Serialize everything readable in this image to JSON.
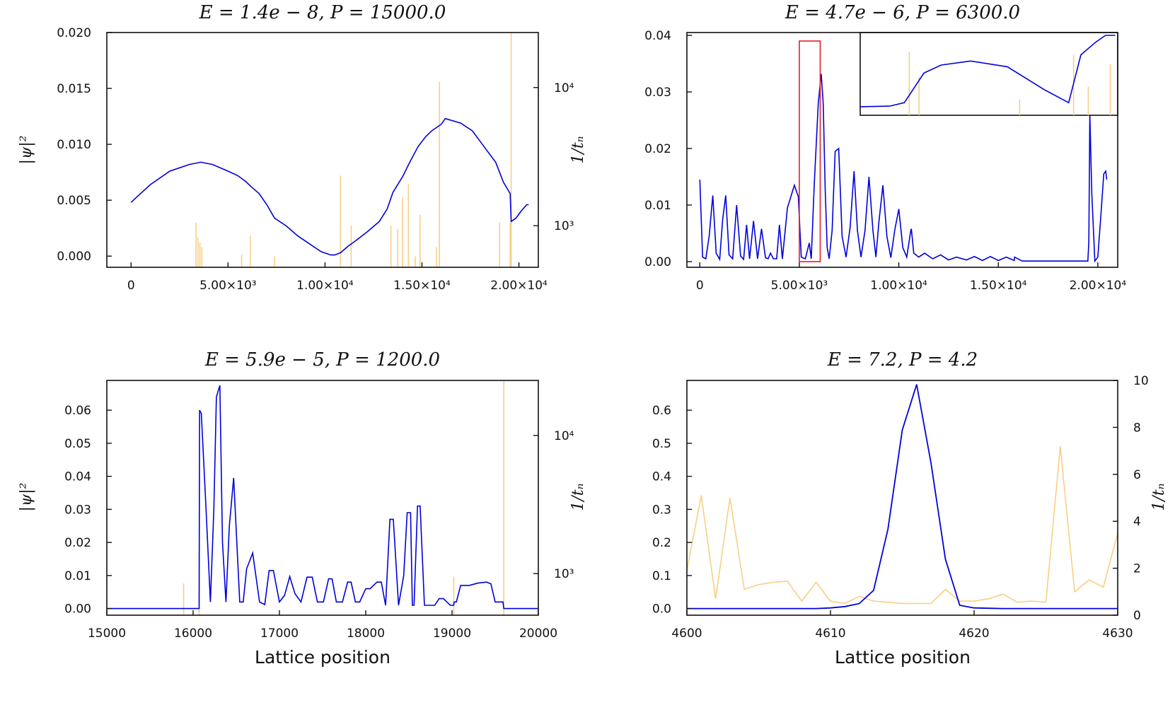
{
  "figure": {
    "colors": {
      "wave": "#0000dd",
      "bars": "#f7cf85",
      "frame": "#111111",
      "highlight": "#e0202a"
    },
    "left_ylabel": "|ψ|²",
    "right_ylabel": "1/tₙ"
  },
  "chart_data": [
    {
      "id": "p1",
      "type": "line",
      "title": "E = 1.4e − 8, P = 15000.0",
      "xlabel": "",
      "ylabel": "|ψ|²",
      "y2label": "1/tₙ",
      "xlim": [
        -1250,
        21000
      ],
      "ylim": [
        -0.001,
        0.02
      ],
      "y2_log": true,
      "y2lim": [
        500,
        25000
      ],
      "xticks": [
        0,
        5000,
        10000,
        15000,
        20000
      ],
      "xtick_labels": [
        "0",
        "5.00×10³",
        "1.00×10⁴",
        "1.50×10⁴",
        "2.00×10⁴"
      ],
      "yticks": [
        0,
        0.005,
        0.01,
        0.015,
        0.02
      ],
      "ytick_labels": [
        "0.000",
        "0.005",
        "0.010",
        "0.015",
        "0.020"
      ],
      "y2ticks": [
        1000,
        10000
      ],
      "y2tick_labels": [
        "10³",
        "10⁴"
      ],
      "series": [
        {
          "name": "|ψ|²",
          "x": [
            0,
            300,
            1000,
            2000,
            3000,
            3600,
            4200,
            5000,
            5500,
            5900,
            6200,
            6600,
            7000,
            7400,
            8000,
            8600,
            9200,
            9800,
            10300,
            10500,
            10800,
            11200,
            11600,
            12200,
            12800,
            13200,
            13500,
            14000,
            14400,
            14800,
            15200,
            15500,
            16000,
            16200,
            16400,
            17000,
            17600,
            18200,
            18800,
            19200,
            19550,
            19600,
            19850,
            20100,
            20400,
            20500
          ],
          "values": [
            0.0048,
            0.0053,
            0.0064,
            0.0076,
            0.0082,
            0.0084,
            0.0082,
            0.0076,
            0.0072,
            0.0067,
            0.0062,
            0.0056,
            0.0046,
            0.0034,
            0.0027,
            0.0018,
            0.0011,
            0.0004,
            0.0001,
            0.0001,
            0.0003,
            0.0009,
            0.0014,
            0.0022,
            0.0031,
            0.0042,
            0.0057,
            0.0071,
            0.0085,
            0.0098,
            0.0107,
            0.0112,
            0.0118,
            0.0123,
            0.0122,
            0.0119,
            0.0112,
            0.0098,
            0.0084,
            0.0066,
            0.0056,
            0.0031,
            0.0034,
            0.004,
            0.0046,
            0.0046
          ]
        }
      ],
      "bars": {
        "name": "1/tₙ",
        "x": [
          3350,
          3450,
          3550,
          3650,
          5700,
          6150,
          7400,
          10800,
          11350,
          13400,
          13750,
          14000,
          14300,
          14650,
          14900,
          15750,
          15900,
          19000,
          19550,
          19600
        ],
        "values": [
          1050,
          820,
          750,
          700,
          620,
          850,
          600,
          2300,
          1000,
          1000,
          950,
          1600,
          2000,
          600,
          1200,
          700,
          11000,
          1050,
          1050,
          25000
        ]
      }
    },
    {
      "id": "p2",
      "type": "line",
      "title": "E = 4.7e − 6, P = 6300.0",
      "xlabel": "",
      "ylabel": "",
      "xlim": [
        -650,
        21000
      ],
      "ylim": [
        -0.001,
        0.0405
      ],
      "xticks": [
        0,
        5000,
        10000,
        15000,
        20000
      ],
      "xtick_labels": [
        "0",
        "5.00×10³",
        "1.00×10⁴",
        "1.50×10⁴",
        "2.00×10⁴"
      ],
      "yticks": [
        0,
        0.01,
        0.02,
        0.03,
        0.04
      ],
      "ytick_labels": [
        "0.00",
        "0.01",
        "0.02",
        "0.03",
        "0.04"
      ],
      "series": [
        {
          "name": "|ψ|²",
          "x": [
            0,
            140,
            300,
            470,
            650,
            820,
            1000,
            1150,
            1300,
            1470,
            1650,
            1850,
            2050,
            2200,
            2350,
            2500,
            2700,
            2900,
            3100,
            3300,
            3430,
            3550,
            3700,
            3860,
            4000,
            4150,
            4400,
            4750,
            4950,
            5100,
            5300,
            5500,
            5600,
            5750,
            5950,
            6100,
            6200,
            6300,
            6400,
            6500,
            6650,
            6800,
            6980,
            7150,
            7350,
            7550,
            7750,
            7920,
            8100,
            8300,
            8500,
            8700,
            8850,
            9000,
            9200,
            9400,
            9600,
            9800,
            10000,
            10200,
            10400,
            10600,
            10630,
            10750,
            11000,
            11300,
            11700,
            12100,
            12500,
            12900,
            13400,
            13800,
            14200,
            14600,
            15000,
            15400,
            15800,
            15820,
            16200,
            17000,
            18000,
            19000,
            19500,
            19550,
            19600,
            19700,
            19850,
            20000,
            20150,
            20300,
            20400,
            20450
          ],
          "values": [
            0.0145,
            0.0008,
            0.0005,
            0.0045,
            0.0117,
            0.0015,
            0.0004,
            0.0075,
            0.0117,
            0.0012,
            0.0005,
            0.01,
            0.001,
            0.0004,
            0.0065,
            0.0005,
            0.0072,
            0.0005,
            0.0058,
            0.0007,
            0.0005,
            0.0015,
            0.0005,
            0.0005,
            0.0065,
            0.0005,
            0.0095,
            0.0135,
            0.0115,
            0.0008,
            0.0005,
            0.0033,
            0.0005,
            0.0135,
            0.028,
            0.0332,
            0.028,
            0.0128,
            0.0025,
            0.0005,
            0.0055,
            0.0195,
            0.02,
            0.0045,
            0.0008,
            0.006,
            0.016,
            0.0055,
            0.0008,
            0.0055,
            0.015,
            0.0055,
            0.0008,
            0.007,
            0.0135,
            0.0045,
            0.0007,
            0.0057,
            0.0093,
            0.0025,
            0.0008,
            0.0055,
            0.0058,
            0.0015,
            0.0008,
            0.0015,
            0.0005,
            0.0012,
            0.0003,
            0.0008,
            0.0003,
            0.0009,
            0.0002,
            0.0009,
            0.0002,
            0.0008,
            0.0002,
            0.0008,
            0.0001,
            0.0001,
            0.0001,
            0.0001,
            0.0001,
            0.0035,
            0.026,
            0.012,
            0.0001,
            0.0008,
            0.008,
            0.0155,
            0.016,
            0.0145
          ]
        }
      ],
      "inset": {
        "xlim": [
          5000,
          6050
        ],
        "series": {
          "x": [
            5000,
            5120,
            5180,
            5260,
            5330,
            5450,
            5600,
            5750,
            5850,
            5900,
            5960,
            6000,
            6040
          ],
          "values": [
            0.0015,
            0.0016,
            0.0022,
            0.0074,
            0.0088,
            0.0095,
            0.0085,
            0.0045,
            0.0022,
            0.0106,
            0.0128,
            0.014,
            0.014
          ]
        },
        "bars": {
          "x": [
            5200,
            5240,
            5650,
            5870,
            5930,
            6020
          ],
          "values": [
            1.0,
            0.6,
            0.25,
            0.95,
            0.45,
            0.8
          ]
        }
      }
    },
    {
      "id": "p3",
      "type": "line",
      "title": "E = 5.9e − 5, P = 1200.0",
      "xlabel": "Lattice position",
      "ylabel": "|ψ|²",
      "y2label": "1/tₙ",
      "xlim": [
        15000,
        20000
      ],
      "ylim": [
        -0.002,
        0.069
      ],
      "y2_log": true,
      "y2lim": [
        500,
        25000
      ],
      "xticks": [
        15000,
        16000,
        17000,
        18000,
        19000,
        20000
      ],
      "xtick_labels": [
        "15000",
        "16000",
        "17000",
        "18000",
        "19000",
        "20000"
      ],
      "yticks": [
        0,
        0.01,
        0.02,
        0.03,
        0.04,
        0.05,
        0.06
      ],
      "ytick_labels": [
        "0.00",
        "0.01",
        "0.02",
        "0.03",
        "0.04",
        "0.05",
        "0.06"
      ],
      "y2ticks": [
        1000,
        10000
      ],
      "y2tick_labels": [
        "10³",
        "10⁴"
      ],
      "series": [
        {
          "name": "|ψ|²",
          "x": [
            15000,
            16000,
            16070,
            16075,
            16095,
            16150,
            16200,
            16240,
            16270,
            16310,
            16340,
            16380,
            16420,
            16470,
            16540,
            16580,
            16620,
            16690,
            16770,
            16830,
            16880,
            16930,
            17000,
            17060,
            17120,
            17180,
            17250,
            17320,
            17380,
            17440,
            17510,
            17570,
            17610,
            17660,
            17730,
            17790,
            17830,
            17880,
            17930,
            18000,
            18050,
            18130,
            18180,
            18230,
            18280,
            18320,
            18380,
            18440,
            18480,
            18520,
            18540,
            18560,
            18600,
            18630,
            18680,
            18740,
            18800,
            18850,
            18900,
            18980,
            19020,
            19025,
            19050,
            19100,
            19200,
            19300,
            19400,
            19450,
            19500,
            19550,
            19590,
            19600,
            19610,
            20000
          ],
          "values": [
            0,
            0,
            0,
            0.06,
            0.059,
            0.03,
            0.002,
            0.03,
            0.064,
            0.0675,
            0.02,
            0.002,
            0.025,
            0.0395,
            0.002,
            0.002,
            0.012,
            0.0168,
            0.002,
            0.0012,
            0.0115,
            0.0115,
            0.002,
            0.004,
            0.0097,
            0.0045,
            0.002,
            0.0095,
            0.0095,
            0.002,
            0.002,
            0.009,
            0.009,
            0.002,
            0.002,
            0.008,
            0.008,
            0.002,
            0.002,
            0.006,
            0.006,
            0.008,
            0.008,
            0.001,
            0.027,
            0.027,
            0.001,
            0.01,
            0.029,
            0.029,
            0.001,
            0.001,
            0.031,
            0.031,
            0.001,
            0.001,
            0.001,
            0.003,
            0.003,
            0.001,
            0.001,
            0.002,
            0.002,
            0.007,
            0.007,
            0.0077,
            0.008,
            0.0075,
            0.002,
            0.002,
            0.002,
            0,
            0,
            0
          ]
        }
      ],
      "bars": {
        "name": "1/tₙ",
        "x": [
          15890,
          16070,
          19020,
          19600
        ],
        "values": [
          850,
          1400,
          950,
          25000
        ]
      }
    },
    {
      "id": "p4",
      "type": "line",
      "title": "E = 7.2, P = 4.2",
      "xlabel": "Lattice position",
      "ylabel": "",
      "y2label": "1/tₙ",
      "xlim": [
        4600,
        4630
      ],
      "ylim": [
        -0.02,
        0.69
      ],
      "y2lim": [
        0,
        10
      ],
      "xticks": [
        4600,
        4610,
        4620,
        4630
      ],
      "xtick_labels": [
        "4600",
        "4610",
        "4620",
        "4630"
      ],
      "yticks": [
        0,
        0.1,
        0.2,
        0.3,
        0.4,
        0.5,
        0.6
      ],
      "ytick_labels": [
        "0.0",
        "0.1",
        "0.2",
        "0.3",
        "0.4",
        "0.5",
        "0.6"
      ],
      "y2ticks": [
        0,
        2,
        4,
        6,
        8,
        10
      ],
      "y2tick_labels": [
        "0",
        "2",
        "4",
        "6",
        "8",
        "10"
      ],
      "series": [
        {
          "name": "|ψ|²",
          "x": [
            4600,
            4608,
            4609,
            4610,
            4611,
            4612,
            4613,
            4614,
            4615,
            4616,
            4617,
            4618,
            4619,
            4620,
            4621,
            4622,
            4623,
            4624,
            4625,
            4626,
            4627,
            4628,
            4629,
            4630
          ],
          "values": [
            0,
            0,
            0,
            0.002,
            0.006,
            0.015,
            0.055,
            0.24,
            0.54,
            0.678,
            0.44,
            0.15,
            0.01,
            0.002,
            0.001,
            0,
            0,
            0,
            0,
            0,
            0,
            0,
            0,
            0
          ]
        },
        {
          "name": "1/tₙ",
          "x": [
            4600,
            4601,
            4602,
            4603,
            4604,
            4605,
            4606,
            4607,
            4608,
            4609,
            4610,
            4611,
            4612,
            4613,
            4614,
            4615,
            4616,
            4617,
            4618,
            4619,
            4620,
            4621,
            4622,
            4623,
            4624,
            4625,
            4626,
            4627,
            4628,
            4629,
            4630
          ],
          "values": [
            1.9,
            5.1,
            0.7,
            5.0,
            1.1,
            1.3,
            1.4,
            1.45,
            0.6,
            1.4,
            0.6,
            0.5,
            0.8,
            0.6,
            0.55,
            0.5,
            0.5,
            0.5,
            1.1,
            0.6,
            0.6,
            0.7,
            0.9,
            0.55,
            0.6,
            0.55,
            7.2,
            1.0,
            1.5,
            1.2,
            3.5
          ]
        }
      ]
    }
  ]
}
